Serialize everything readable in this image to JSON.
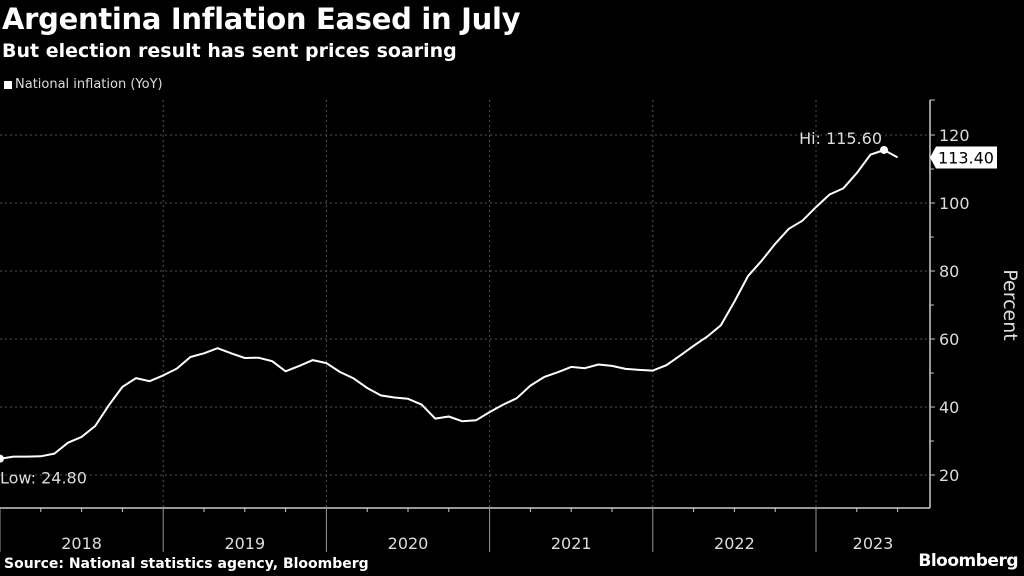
{
  "chart_data": {
    "type": "line",
    "title": "Argentina Inflation Eased in July",
    "subtitle": "But election result has sent prices soaring",
    "legend": [
      "National inflation (YoY)"
    ],
    "legend_position": "top-left",
    "xlabel": "",
    "ylabel": "Percent",
    "ylim": [
      20,
      120
    ],
    "yticks": [
      20,
      40,
      60,
      80,
      100,
      120
    ],
    "ytick_labels": [
      "20",
      "40",
      "60",
      "80",
      "100",
      "120"
    ],
    "x_tick_labels": [
      "2018",
      "2019",
      "2020",
      "2021",
      "2022",
      "2023"
    ],
    "x_start": "2018-01",
    "grid": true,
    "series": [
      {
        "name": "National inflation (YoY)",
        "values": [
          24.8,
          25.4,
          25.4,
          25.5,
          26.3,
          29.5,
          31.2,
          34.4,
          40.5,
          45.9,
          48.5,
          47.6,
          49.3,
          51.3,
          54.7,
          55.8,
          57.3,
          55.8,
          54.4,
          54.5,
          53.5,
          50.5,
          52.1,
          53.8,
          52.9,
          50.3,
          48.4,
          45.6,
          43.4,
          42.8,
          42.4,
          40.7,
          36.6,
          37.2,
          35.8,
          36.1,
          38.5,
          40.7,
          42.6,
          46.3,
          48.8,
          50.2,
          51.8,
          51.4,
          52.5,
          52.1,
          51.2,
          50.9,
          50.7,
          52.3,
          55.1,
          58.0,
          60.7,
          64.0,
          71.0,
          78.5,
          83.0,
          88.0,
          92.4,
          94.8,
          98.8,
          102.5,
          104.3,
          108.8,
          114.2,
          115.6,
          113.4
        ]
      }
    ],
    "annotations": {
      "low_label": "Low: 24.80",
      "high_label": "Hi: 115.60",
      "last_value_label": "113.40"
    }
  },
  "footer": {
    "source": "Source: National statistics agency, Bloomberg",
    "brand": "Bloomberg"
  }
}
